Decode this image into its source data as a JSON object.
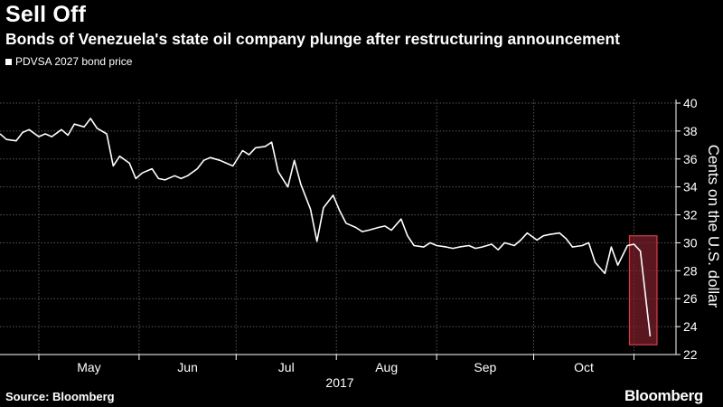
{
  "header": {
    "title": "Sell Off",
    "subtitle": "Bonds of Venezuela's state oil company plunge after restructuring announcement"
  },
  "footer": {
    "source": "Source: Bloomberg",
    "brand": "Bloomberg"
  },
  "colors": {
    "background": "#000000",
    "line": "#ffffff",
    "grid": "#555555",
    "highlight_fill": "#7a1f2b",
    "highlight_stroke": "#d0404c"
  },
  "chart_data": {
    "type": "line",
    "legend": "PDVSA 2027 bond price",
    "legend_position": "top-left",
    "ylabel": "Cents on the U.S. dollar",
    "xlabel": "2017",
    "ylim": [
      22,
      40
    ],
    "yticks": [
      22,
      24,
      26,
      28,
      30,
      32,
      34,
      36,
      38,
      40
    ],
    "y_axis_side": "right",
    "grid": true,
    "xlim": [
      "2017-04-19",
      "2017-11-14"
    ],
    "month_ticks": [
      {
        "label": "May",
        "date": "2017-05-01"
      },
      {
        "label": "Jun",
        "date": "2017-06-01"
      },
      {
        "label": "Jul",
        "date": "2017-07-01"
      },
      {
        "label": "Aug",
        "date": "2017-08-01"
      },
      {
        "label": "Sep",
        "date": "2017-09-01"
      },
      {
        "label": "Oct",
        "date": "2017-10-01"
      }
    ],
    "year_label": "2017",
    "highlight": {
      "x_start": "2017-11-01",
      "x_end": "2017-11-07",
      "y_low": 22.7,
      "y_high": 30.5
    },
    "series": [
      {
        "name": "PDVSA 2027 bond price",
        "x": [
          "2017-04-19",
          "2017-04-21",
          "2017-04-24",
          "2017-04-26",
          "2017-04-28",
          "2017-05-01",
          "2017-05-03",
          "2017-05-05",
          "2017-05-08",
          "2017-05-10",
          "2017-05-12",
          "2017-05-15",
          "2017-05-17",
          "2017-05-19",
          "2017-05-22",
          "2017-05-24",
          "2017-05-26",
          "2017-05-29",
          "2017-05-31",
          "2017-06-02",
          "2017-06-05",
          "2017-06-07",
          "2017-06-09",
          "2017-06-12",
          "2017-06-14",
          "2017-06-16",
          "2017-06-19",
          "2017-06-21",
          "2017-06-23",
          "2017-06-26",
          "2017-06-28",
          "2017-06-30",
          "2017-07-03",
          "2017-07-05",
          "2017-07-07",
          "2017-07-10",
          "2017-07-12",
          "2017-07-14",
          "2017-07-17",
          "2017-07-19",
          "2017-07-21",
          "2017-07-24",
          "2017-07-26",
          "2017-07-28",
          "2017-07-31",
          "2017-08-02",
          "2017-08-04",
          "2017-08-07",
          "2017-08-09",
          "2017-08-11",
          "2017-08-14",
          "2017-08-16",
          "2017-08-18",
          "2017-08-21",
          "2017-08-23",
          "2017-08-25",
          "2017-08-28",
          "2017-08-30",
          "2017-09-01",
          "2017-09-04",
          "2017-09-06",
          "2017-09-08",
          "2017-09-11",
          "2017-09-13",
          "2017-09-15",
          "2017-09-18",
          "2017-09-20",
          "2017-09-22",
          "2017-09-25",
          "2017-09-27",
          "2017-09-29",
          "2017-10-02",
          "2017-10-04",
          "2017-10-06",
          "2017-10-09",
          "2017-10-11",
          "2017-10-13",
          "2017-10-16",
          "2017-10-18",
          "2017-10-20",
          "2017-10-23",
          "2017-10-25",
          "2017-10-27",
          "2017-10-30",
          "2017-11-01",
          "2017-11-03",
          "2017-11-06"
        ],
        "values": [
          37.8,
          37.4,
          37.3,
          37.9,
          38.1,
          37.6,
          37.8,
          37.6,
          38.1,
          37.7,
          38.5,
          38.3,
          38.9,
          38.2,
          37.8,
          35.5,
          36.2,
          35.7,
          34.6,
          35.0,
          35.3,
          34.6,
          34.5,
          34.8,
          34.6,
          34.8,
          35.3,
          35.9,
          36.1,
          35.9,
          35.7,
          35.5,
          36.6,
          36.3,
          36.8,
          36.9,
          37.2,
          35.1,
          34.0,
          35.9,
          34.2,
          32.4,
          30.1,
          32.5,
          33.4,
          32.3,
          31.4,
          31.1,
          30.8,
          30.9,
          31.1,
          31.2,
          30.9,
          31.7,
          30.5,
          29.8,
          29.7,
          30.0,
          29.8,
          29.7,
          29.6,
          29.7,
          29.8,
          29.6,
          29.7,
          29.9,
          29.5,
          30.0,
          29.8,
          30.2,
          30.7,
          30.2,
          30.5,
          30.6,
          30.7,
          30.3,
          29.7,
          29.8,
          30.0,
          28.6,
          27.8,
          29.7,
          28.4,
          29.8,
          29.9,
          29.4,
          23.3
        ]
      }
    ]
  }
}
